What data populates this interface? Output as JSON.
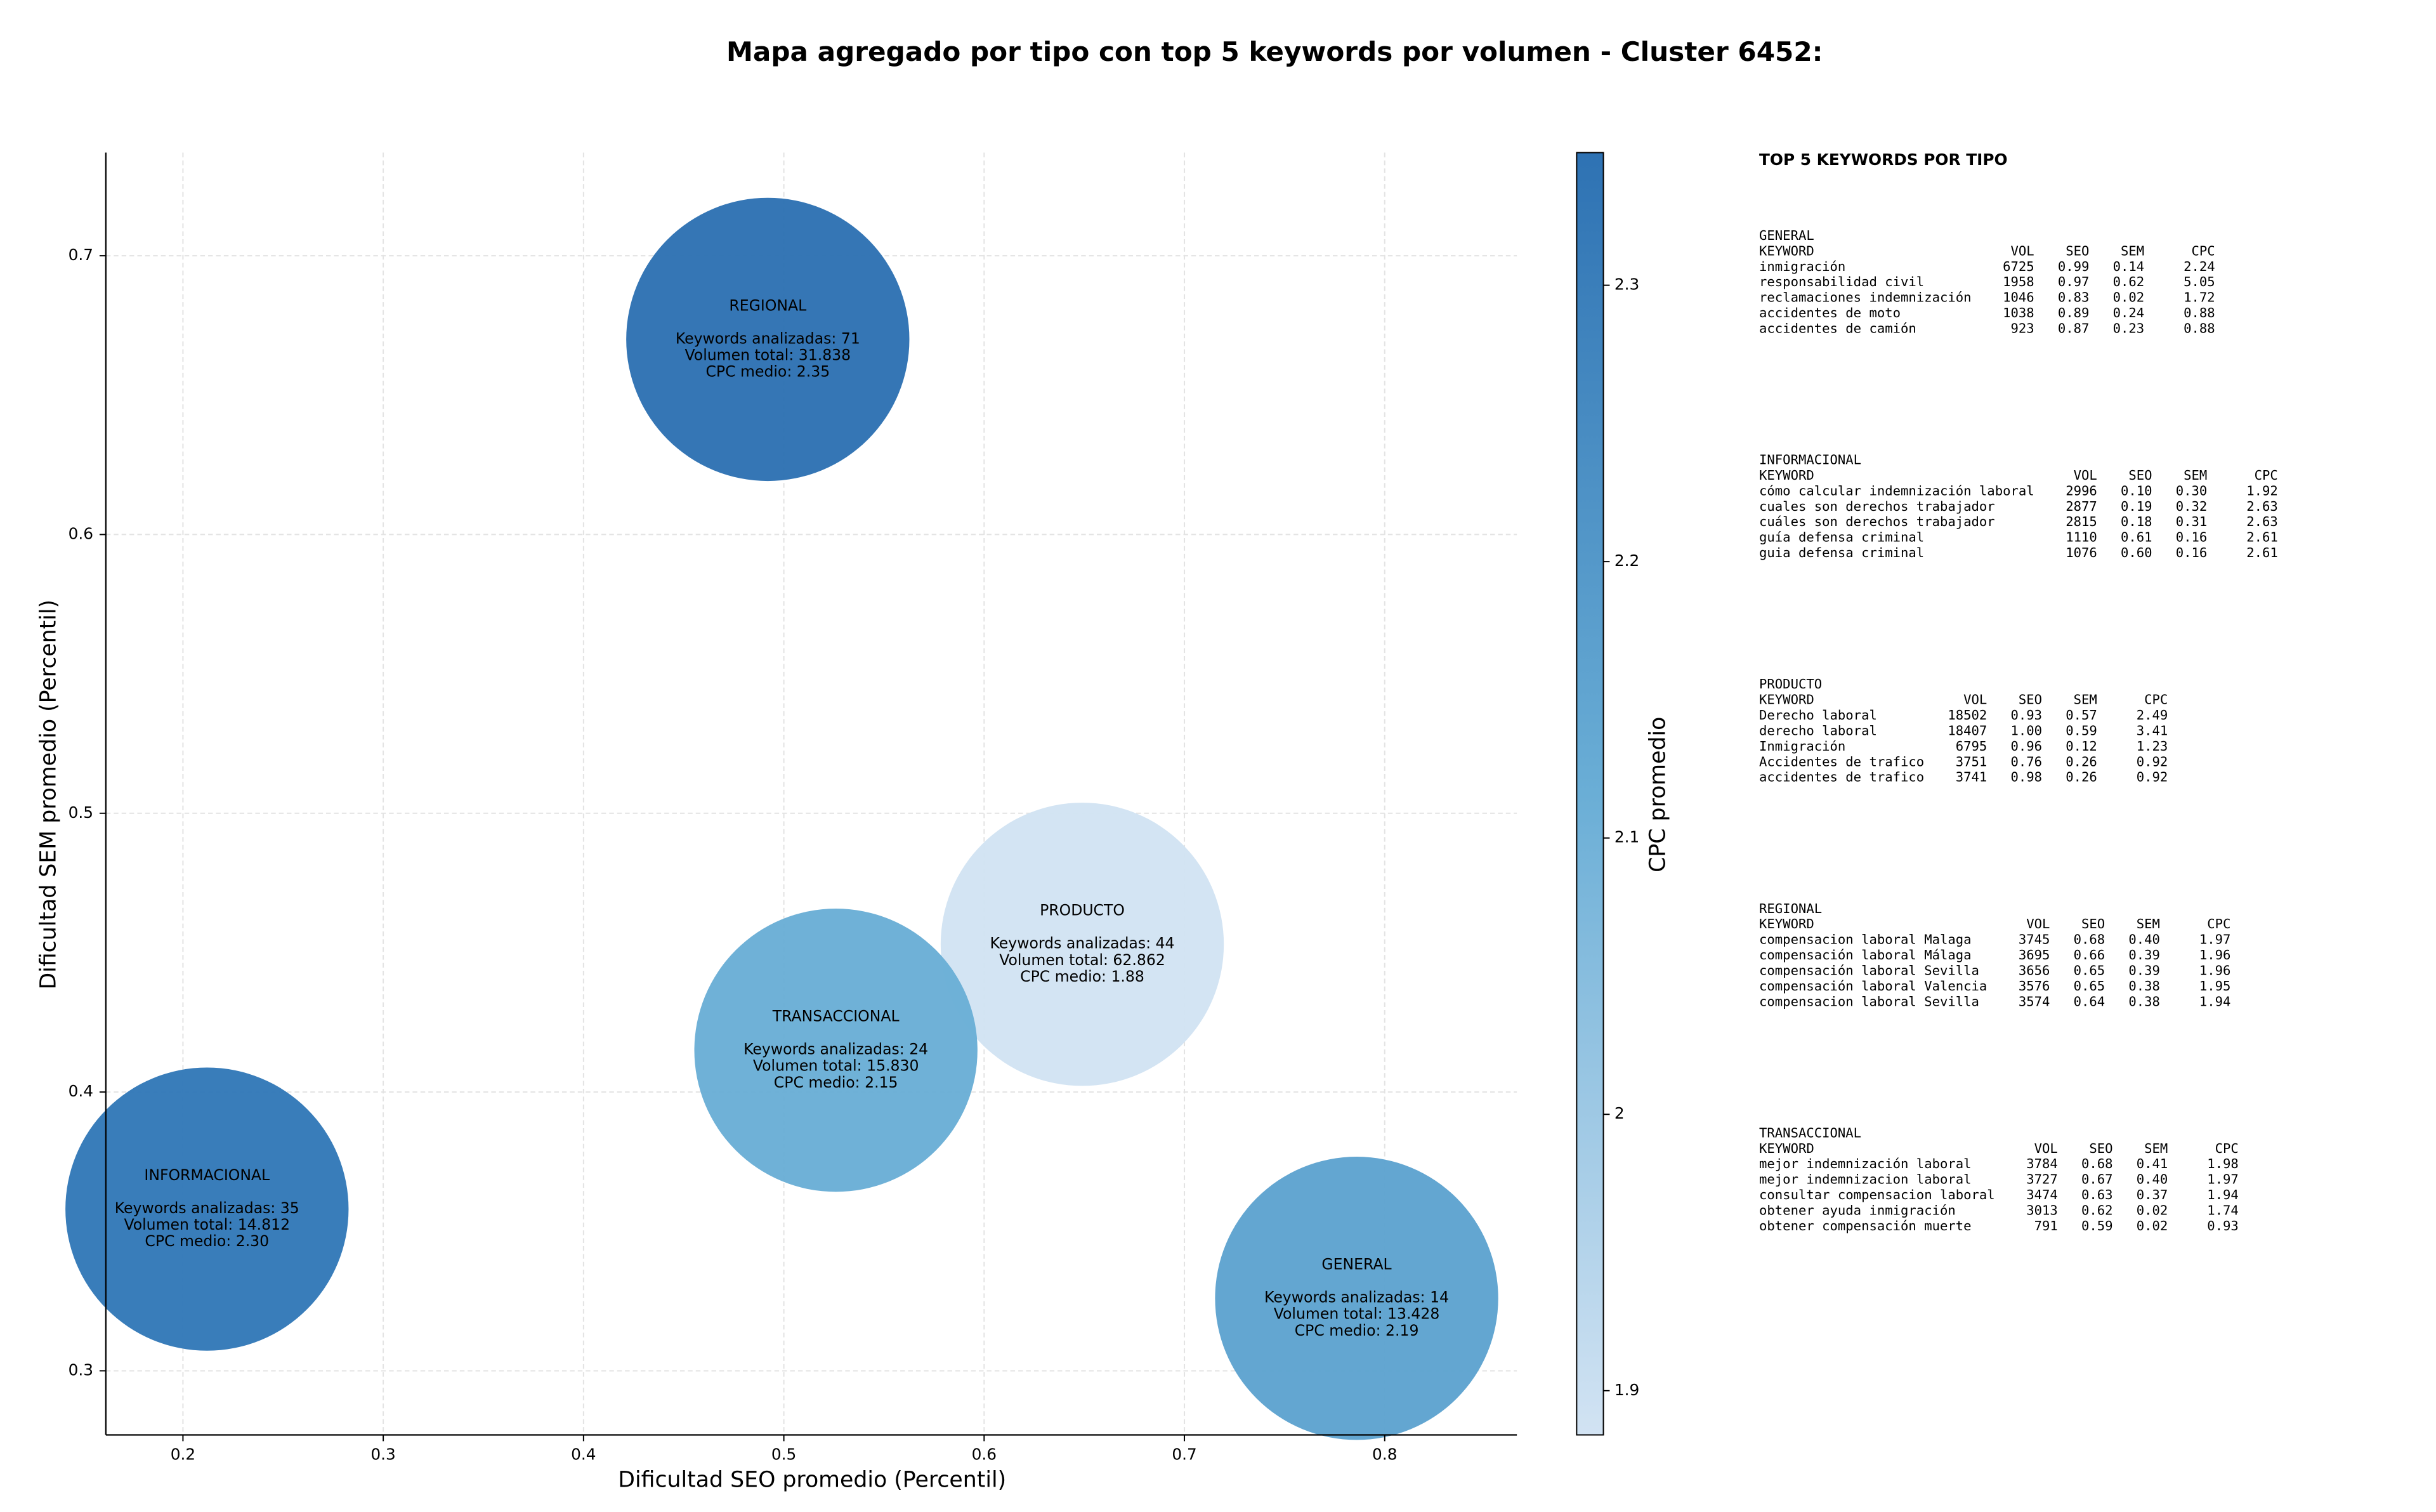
{
  "chart_data": {
    "type": "bubble",
    "title": "Mapa agregado por tipo con top 5 keywords por volumen - Cluster 6452:",
    "x_label": "Dificultad SEO promedio (Percentil)",
    "y_label": "Dificultad SEM promedio (Percentil)",
    "colorbar_label": "CPC promedio",
    "xlim": [
      0.1615,
      0.866
    ],
    "ylim": [
      0.277,
      0.737
    ],
    "xticks": [
      0.2,
      0.3,
      0.4,
      0.5,
      0.6,
      0.7,
      0.8
    ],
    "yticks": [
      0.3,
      0.4,
      0.5,
      0.6,
      0.7
    ],
    "clim": [
      1.884,
      2.348
    ],
    "cticks": [
      1.9,
      2.0,
      2.1,
      2.2,
      2.3
    ],
    "colormap": [
      "#d2e3f3",
      "#6aaed6",
      "#2e72b3"
    ],
    "grid": true,
    "points": [
      {
        "name": "REGIONAL",
        "x": 0.492,
        "y": 0.67,
        "cpc": 2.35,
        "color": "#2e72b3",
        "lines": [
          "Keywords analizadas: 71",
          "Volumen total: 31.838",
          "CPC medio: 2.35"
        ]
      },
      {
        "name": "PRODUCTO",
        "x": 0.649,
        "y": 0.453,
        "cpc": 1.88,
        "color": "#d2e3f3",
        "lines": [
          "Keywords analizadas: 44",
          "Volumen total: 62.862",
          "CPC medio: 1.88"
        ]
      },
      {
        "name": "TRANSACCIONAL",
        "x": 0.526,
        "y": 0.415,
        "cpc": 2.15,
        "color": "#6aaed6",
        "lines": [
          "Keywords analizadas: 24",
          "Volumen total: 15.830",
          "CPC medio: 2.15"
        ]
      },
      {
        "name": "INFORMACIONAL",
        "x": 0.212,
        "y": 0.358,
        "cpc": 2.3,
        "color": "#3379b8",
        "lines": [
          "Keywords analizadas: 35",
          "Volumen total: 14.812",
          "CPC medio: 2.30"
        ]
      },
      {
        "name": "GENERAL",
        "x": 0.786,
        "y": 0.326,
        "cpc": 2.19,
        "color": "#5ea3d0",
        "lines": [
          "Keywords analizadas: 14",
          "Volumen total: 13.428",
          "CPC medio: 2.19"
        ]
      }
    ]
  },
  "side_panel": {
    "title": "TOP 5 KEYWORDS POR TIPO",
    "sections": [
      {
        "name": "GENERAL",
        "header": [
          "KEYWORD",
          "VOL",
          "SEO",
          "SEM",
          "CPC"
        ],
        "rows": [
          [
            "inmigración",
            "6725",
            "0.99",
            "0.14",
            "2.24"
          ],
          [
            "responsabilidad civil",
            "1958",
            "0.97",
            "0.62",
            "5.05"
          ],
          [
            "reclamaciones indemnización",
            "1046",
            "0.83",
            "0.02",
            "1.72"
          ],
          [
            "accidentes de moto",
            "1038",
            "0.89",
            "0.24",
            "0.88"
          ],
          [
            "accidentes de camión",
            "923",
            "0.87",
            "0.23",
            "0.88"
          ]
        ]
      },
      {
        "name": "INFORMACIONAL",
        "header": [
          "KEYWORD",
          "VOL",
          "SEO",
          "SEM",
          "CPC"
        ],
        "rows": [
          [
            "cómo calcular indemnización laboral",
            "2996",
            "0.10",
            "0.30",
            "1.92"
          ],
          [
            "cuales son derechos trabajador",
            "2877",
            "0.19",
            "0.32",
            "2.63"
          ],
          [
            "cuáles son derechos trabajador",
            "2815",
            "0.18",
            "0.31",
            "2.63"
          ],
          [
            "guía defensa criminal",
            "1110",
            "0.61",
            "0.16",
            "2.61"
          ],
          [
            "guia defensa criminal",
            "1076",
            "0.60",
            "0.16",
            "2.61"
          ]
        ]
      },
      {
        "name": "PRODUCTO",
        "header": [
          "KEYWORD",
          "VOL",
          "SEO",
          "SEM",
          "CPC"
        ],
        "rows": [
          [
            "Derecho laboral",
            "18502",
            "0.93",
            "0.57",
            "2.49"
          ],
          [
            "derecho laboral",
            "18407",
            "1.00",
            "0.59",
            "3.41"
          ],
          [
            "Inmigración",
            "6795",
            "0.96",
            "0.12",
            "1.23"
          ],
          [
            "Accidentes de trafico",
            "3751",
            "0.76",
            "0.26",
            "0.92"
          ],
          [
            "accidentes de trafico",
            "3741",
            "0.98",
            "0.26",
            "0.92"
          ]
        ]
      },
      {
        "name": "REGIONAL",
        "header": [
          "KEYWORD",
          "VOL",
          "SEO",
          "SEM",
          "CPC"
        ],
        "rows": [
          [
            "compensacion laboral Malaga",
            "3745",
            "0.68",
            "0.40",
            "1.97"
          ],
          [
            "compensación laboral Málaga",
            "3695",
            "0.66",
            "0.39",
            "1.96"
          ],
          [
            "compensación laboral Sevilla",
            "3656",
            "0.65",
            "0.39",
            "1.96"
          ],
          [
            "compensación laboral Valencia",
            "3576",
            "0.65",
            "0.38",
            "1.95"
          ],
          [
            "compensacion laboral Sevilla",
            "3574",
            "0.64",
            "0.38",
            "1.94"
          ]
        ]
      },
      {
        "name": "TRANSACCIONAL",
        "header": [
          "KEYWORD",
          "VOL",
          "SEO",
          "SEM",
          "CPC"
        ],
        "rows": [
          [
            "mejor indemnización laboral",
            "3784",
            "0.68",
            "0.41",
            "1.98"
          ],
          [
            "mejor indemnizacion laboral",
            "3727",
            "0.67",
            "0.40",
            "1.97"
          ],
          [
            "consultar compensacion laboral",
            "3474",
            "0.63",
            "0.37",
            "1.94"
          ],
          [
            "obtener ayuda inmigración",
            "3013",
            "0.62",
            "0.02",
            "1.74"
          ],
          [
            "obtener compensación muerte",
            "791",
            "0.59",
            "0.02",
            "0.93"
          ]
        ]
      }
    ]
  }
}
